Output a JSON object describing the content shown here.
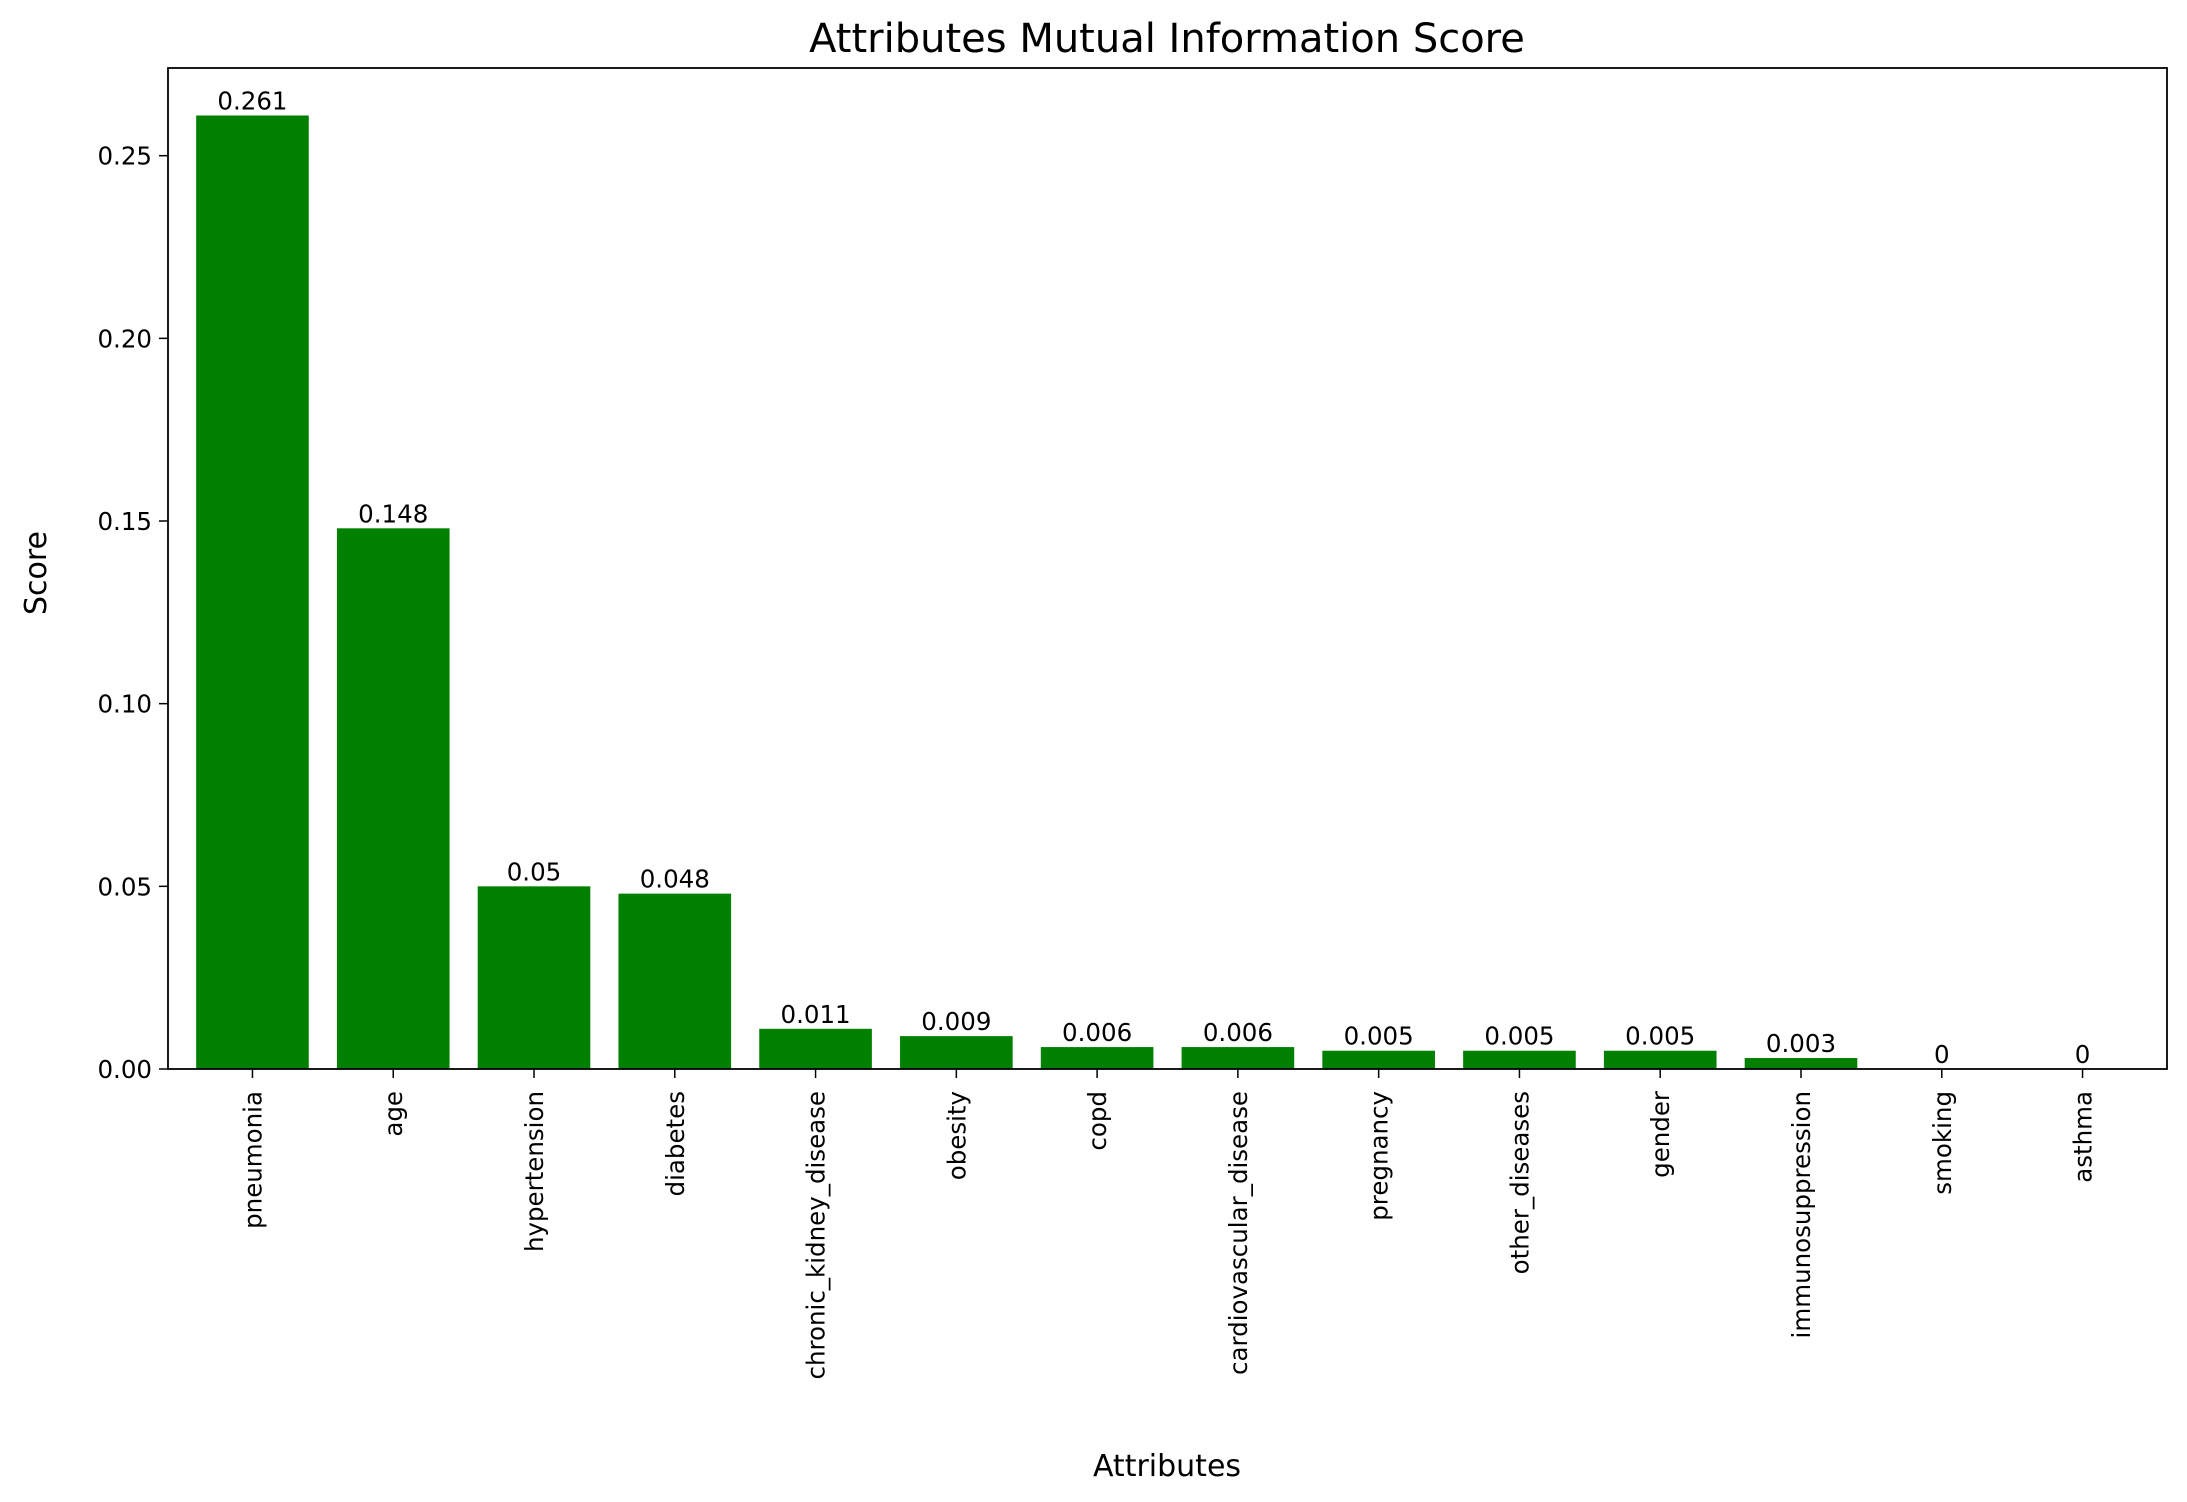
{
  "chart_data": {
    "type": "bar",
    "title": "Attributes Mutual Information Score",
    "xlabel": "Attributes",
    "ylabel": "Score",
    "categories": [
      "pneumonia",
      "age",
      "hypertension",
      "diabetes",
      "chronic_kidney_disease",
      "obesity",
      "copd",
      "cardiovascular_disease",
      "pregnancy",
      "other_diseases",
      "gender",
      "immunosuppression",
      "smoking",
      "asthma"
    ],
    "values": [
      0.261,
      0.148,
      0.05,
      0.048,
      0.011,
      0.009,
      0.006,
      0.006,
      0.005,
      0.005,
      0.005,
      0.003,
      0,
      0
    ],
    "data_labels": [
      "0.261",
      "0.148",
      "0.05",
      "0.048",
      "0.011",
      "0.009",
      "0.006",
      "0.006",
      "0.005",
      "0.005",
      "0.005",
      "0.003",
      "0",
      "0"
    ],
    "ylim": [
      0,
      0.274
    ],
    "yticks": [
      0.0,
      0.05,
      0.1,
      0.15,
      0.2,
      0.25
    ],
    "ytick_labels": [
      "0.00",
      "0.05",
      "0.10",
      "0.15",
      "0.20",
      "0.25"
    ],
    "bar_color": "#008000",
    "grid": false,
    "legend": false
  }
}
